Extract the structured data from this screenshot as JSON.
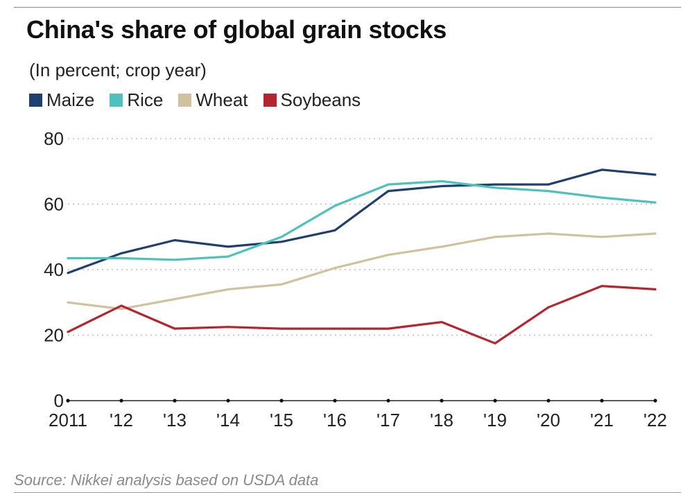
{
  "header": {
    "title": "China's share of global grain stocks",
    "subtitle": "(In percent; crop year)"
  },
  "legend": [
    {
      "label": "Maize",
      "color": "#1f3f6e"
    },
    {
      "label": "Rice",
      "color": "#4fc1bd"
    },
    {
      "label": "Wheat",
      "color": "#cfc29d"
    },
    {
      "label": "Soybeans",
      "color": "#b5252f"
    }
  ],
  "footer": {
    "source": "Source: Nikkei analysis based on USDA data"
  },
  "chart_data": {
    "type": "line",
    "title": "China's share of global grain stocks",
    "subtitle": "(In percent; crop year)",
    "x": [
      "2011",
      "'12",
      "'13",
      "'14",
      "'15",
      "'16",
      "'17",
      "'18",
      "'19",
      "'20",
      "'21",
      "'22"
    ],
    "ylim": [
      0,
      80
    ],
    "yticks": [
      0,
      20,
      40,
      60,
      80
    ],
    "grid": true,
    "legend_position": "top-left",
    "series": [
      {
        "name": "Maize",
        "color": "#1f3f6e",
        "values": [
          39,
          45,
          49,
          47,
          48.5,
          52,
          64,
          65.5,
          66,
          66,
          70.5,
          69
        ]
      },
      {
        "name": "Rice",
        "color": "#4fc1bd",
        "values": [
          43.5,
          43.5,
          43,
          44,
          50,
          59.5,
          66,
          67,
          65,
          64,
          62,
          60.5
        ]
      },
      {
        "name": "Wheat",
        "color": "#cfc29d",
        "values": [
          30,
          28,
          31,
          34,
          35.5,
          40.5,
          44.5,
          47,
          50,
          51,
          50,
          51
        ]
      },
      {
        "name": "Soybeans",
        "color": "#b5252f",
        "values": [
          21,
          29,
          22,
          22.5,
          22,
          22,
          22,
          24,
          17.5,
          28.5,
          35,
          34
        ]
      }
    ]
  }
}
